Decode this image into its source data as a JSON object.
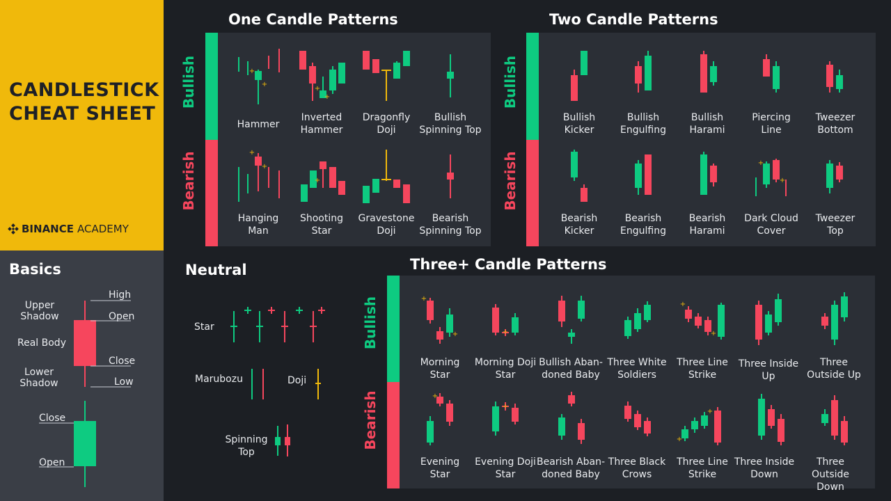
{
  "brand": {
    "title_line1": "CANDLESTICK",
    "title_line2": "CHEAT SHEET",
    "logo_bold": "BINANCE",
    "logo_light": "ACADEMY"
  },
  "colors": {
    "bull": "#0ecb81",
    "bear": "#f6465d",
    "doji": "#f0b90b",
    "panel": "#2b2f36",
    "bg": "#1c1f24",
    "basics_bg": "#3a3e46",
    "brand_bg": "#f0b90b"
  },
  "side_labels": {
    "bullish": "Bullish",
    "bearish": "Bearish"
  },
  "one_candle": {
    "title": "One Candle Patterns",
    "bullish": [
      "Hammer",
      "Inverted\nHammer",
      "Dragonfly\nDoji",
      "Bullish\nSpinning Top"
    ],
    "bearish": [
      "Hanging\nMan",
      "Shooting\nStar",
      "Gravestone\nDoji",
      "Bearish\nSpinning Top"
    ]
  },
  "two_candle": {
    "title": "Two Candle Patterns",
    "bullish": [
      "Bullish\nKicker",
      "Bullish\nEngulfing",
      "Bullish\nHarami",
      "Piercing\nLine",
      "Tweezer\nBottom"
    ],
    "bearish": [
      "Bearish\nKicker",
      "Bearish\nEngulfing",
      "Bearish\nHarami",
      "Dark Cloud\nCover",
      "Tweezer\nTop"
    ]
  },
  "three_candle": {
    "title": "Three+ Candle Patterns",
    "bullish": [
      "Morning\nStar",
      "Morning Doji\nStar",
      "Bullish Aban-\ndoned Baby",
      "Three White\nSoldiers",
      "Three Line\nStrike",
      "Three Inside\nUp",
      "Three\nOutside Up"
    ],
    "bearish": [
      "Evening\nStar",
      "Evening Doji\nStar",
      "Bearish Aban-\ndoned Baby",
      "Three Black\nCrows",
      "Three Line\nStrike",
      "Three Inside\nDown",
      "Three Outside\nDown"
    ]
  },
  "neutral": {
    "title": "Neutral",
    "star": "Star",
    "marubozu": "Marubozu",
    "doji": "Doji",
    "spinning_top": "Spinning\nTop"
  },
  "basics": {
    "title": "Basics",
    "upper_shadow": "Upper\nShadow",
    "real_body": "Real Body",
    "lower_shadow": "Lower\nShadow",
    "high": "High",
    "open": "Open",
    "close": "Close",
    "low": "Low",
    "close2": "Close",
    "open2": "Open"
  }
}
